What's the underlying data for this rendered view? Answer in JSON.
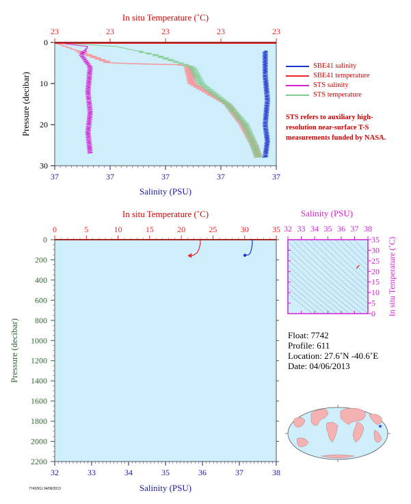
{
  "colors": {
    "panel_bg": "#cdeefa",
    "red": "#ee2222",
    "blue": "#1a33cc",
    "magenta": "#d21fd2",
    "green": "#7fca8a",
    "pink": "#f49aa0",
    "label_red": "#cc0000",
    "axis_blue": "#1a1a99",
    "axis_green": "#336633",
    "land": "#f4b2b2",
    "ocean": "#cdeefa"
  },
  "top_panel": {
    "title": "In situ Temperature (˚C)",
    "top_ticks": [
      "23",
      "23",
      "23",
      "23",
      "23"
    ],
    "xlabel": "Salinity (PSU)",
    "bottom_ticks": [
      "37",
      "37",
      "37",
      "37",
      "37"
    ],
    "ylabel": "Pressure (decibar)",
    "y_ticks": [
      "0",
      "10",
      "20",
      "30"
    ]
  },
  "legend": [
    {
      "label": "SBE41 salinity",
      "color": "#1a33cc"
    },
    {
      "label": "SBE41 temperature",
      "color": "#ee2222"
    },
    {
      "label": "STS salinity",
      "color": "#d21fd2"
    },
    {
      "label": "STS temperature",
      "color": "#7fca8a"
    }
  ],
  "note": "STS refers to auxiliary high-resolution near-surface T-S measurements funded by NASA.",
  "main_panel": {
    "title": "In situ Temperature (˚C)",
    "top_ticks": [
      "0",
      "5",
      "10",
      "15",
      "20",
      "25",
      "30",
      "35"
    ],
    "xlabel": "Salinity (PSU)",
    "bottom_ticks": [
      "32",
      "33",
      "34",
      "35",
      "36",
      "37",
      "38"
    ],
    "ylabel": "Pressure (decibar)",
    "y_ticks": [
      "0",
      "200",
      "400",
      "600",
      "800",
      "1000",
      "1200",
      "1400",
      "1600",
      "1800",
      "2000",
      "2200"
    ]
  },
  "ts_panel": {
    "title": "Salinity (PSU)",
    "top_ticks": [
      "32",
      "33",
      "34",
      "35",
      "36",
      "37",
      "38"
    ],
    "ylabel": "In situ Temperature (˚C)",
    "y_ticks": [
      "0",
      "5",
      "10",
      "15",
      "20",
      "25",
      "30",
      "35"
    ]
  },
  "float_info": {
    "float": "Float:  7742",
    "profile": "Profile:  611",
    "location": "Location:  27.6˚N  -40.6˚E",
    "date": "Date:  04/06/2013"
  },
  "footer": "7742/611 04/06/2013",
  "chart_data": [
    {
      "type": "line",
      "title": "In situ Temperature (˚C)",
      "xlabel": "Salinity (PSU)",
      "ylabel": "Pressure (decibar)",
      "ylim": [
        30,
        0
      ],
      "series": [
        {
          "name": "SBE41 salinity",
          "x_frac": [
            0.95,
            0.95,
            0.96,
            0.95,
            0.96,
            0.95
          ],
          "y": [
            2,
            8,
            14,
            20,
            24,
            28
          ]
        },
        {
          "name": "SBE41 temperature",
          "x_frac": [
            0.0,
            0.25,
            0.6,
            0.62,
            0.78,
            0.85,
            0.9,
            0.92
          ],
          "y": [
            0,
            5,
            5.5,
            10,
            15,
            20,
            25,
            28
          ]
        },
        {
          "name": "STS salinity",
          "x_frac": [
            0.0,
            0.15,
            0.12,
            0.16,
            0.15,
            0.16,
            0.15,
            0.16
          ],
          "y": [
            0,
            1,
            3,
            6,
            12,
            17,
            22,
            27
          ]
        },
        {
          "name": "STS temperature",
          "x_frac": [
            0.0,
            0.28,
            0.45,
            0.62,
            0.66,
            0.78,
            0.86,
            0.9,
            0.92
          ],
          "y": [
            0,
            1,
            3,
            6,
            10,
            15,
            20,
            25,
            28
          ]
        }
      ]
    },
    {
      "type": "line",
      "title": "In situ Temperature (˚C)",
      "xlabel": "Salinity (PSU)",
      "ylabel": "Pressure (decibar)",
      "xlim_temperature": [
        0,
        35
      ],
      "xlim_salinity": [
        32,
        38
      ],
      "ylim": [
        2200,
        0
      ],
      "series": [
        {
          "name": "temperature",
          "x": [
            23.0,
            23.0,
            22.8,
            22.5,
            21.9,
            21.3
          ],
          "y": [
            0,
            40,
            90,
            130,
            155,
            160
          ]
        },
        {
          "name": "salinity",
          "x": [
            37.35,
            37.35,
            37.33,
            37.3,
            37.25,
            37.15
          ],
          "y": [
            0,
            40,
            90,
            130,
            150,
            155
          ]
        }
      ]
    },
    {
      "type": "scatter",
      "title": "Salinity (PSU)",
      "ylabel": "In situ Temperature (˚C)",
      "xlim": [
        32,
        38
      ],
      "ylim": [
        0,
        35
      ],
      "series": [
        {
          "name": "T-S",
          "x": [
            37.15,
            37.2,
            37.3,
            37.35
          ],
          "y": [
            21.3,
            21.9,
            22.5,
            23.0
          ]
        }
      ]
    }
  ]
}
